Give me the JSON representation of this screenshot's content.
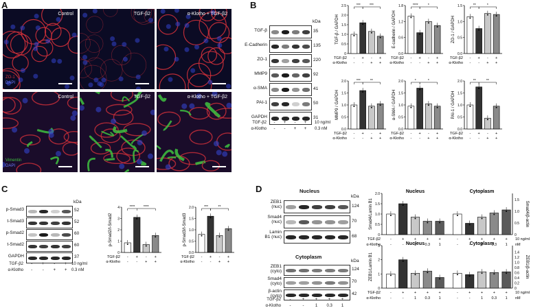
{
  "panels": {
    "A": {
      "label": "A",
      "images": [
        {
          "title": "Control",
          "channels": [
            "ZO-1",
            "DAPI"
          ]
        },
        {
          "title": "TGF-β2",
          "channels": []
        },
        {
          "title": "α-Klotho + TGF-β2",
          "channels": []
        },
        {
          "title": "Control",
          "channels": [
            "Vimentin",
            "DAPI"
          ]
        },
        {
          "title": "TGF-β2",
          "channels": []
        },
        {
          "title": "α-Klotho + TGF-β2",
          "channels": []
        }
      ],
      "colors": {
        "zo1": "#d0303a",
        "vimentin": "#3fc23f",
        "dapi": "#3344cc"
      }
    },
    "B": {
      "label": "B",
      "blot_rows": [
        {
          "name": "TGF-β",
          "kda": "35"
        },
        {
          "name": "E-Cadherin",
          "kda": "135"
        },
        {
          "name": "ZO-1",
          "kda": "220"
        },
        {
          "name": "MMP9",
          "kda": "92"
        },
        {
          "name": "α-SMA",
          "kda": "41"
        },
        {
          "name": "PAI-1",
          "kda": "50"
        },
        {
          "name": "GAPDH",
          "kda": "31"
        }
      ],
      "kda_header": "kDa",
      "conditions": {
        "tgf_label": "TGF-β2",
        "tgf_signs": [
          "-",
          "+",
          "-",
          "+"
        ],
        "tgf_unit": "10 ng/ml",
        "klotho_label": "α-Klotho",
        "klotho_signs": [
          "-",
          "-",
          "+",
          "+"
        ],
        "klotho_unit": "0.3 nM"
      }
    },
    "C": {
      "label": "C",
      "blot_rows": [
        {
          "name": "p-Smad3",
          "kda": "52"
        },
        {
          "name": "t-Smad3",
          "kda": "52"
        },
        {
          "name": "p-Smad2",
          "kda": "60"
        },
        {
          "name": "t-Smad2",
          "kda": "60"
        },
        {
          "name": "GAPDH",
          "kda": "37"
        }
      ],
      "kda_header": "kDa",
      "conditions": {
        "tgf_label": "TGF-β2",
        "tgf_signs": [
          "-",
          "+",
          "-",
          "+"
        ],
        "tgf_unit": "10 ng/ml",
        "klotho_label": "α-Klotho",
        "klotho_signs": [
          "-",
          "-",
          "+",
          "+"
        ],
        "klotho_unit": "0.3 nM"
      }
    },
    "D": {
      "label": "D",
      "nucleus_title": "Nucleus",
      "cytoplasm_title": "Cytoplasm",
      "nuc_rows": [
        {
          "name": "ZEB1",
          "sub": "(nuc)",
          "kda": "124"
        },
        {
          "name": "Smad4",
          "sub": "(nuc)",
          "kda": "70"
        },
        {
          "name": "Lamin",
          "sub": "B1 (nuc)",
          "kda": "68"
        }
      ],
      "cyto_rows": [
        {
          "name": "ZEB1",
          "sub": "(cyto)",
          "kda": "124"
        },
        {
          "name": "Smad4",
          "sub": "(cyto)",
          "kda": "70"
        },
        {
          "name": "β-actin",
          "sub": "(cyto)",
          "kda": "42"
        }
      ],
      "kda_header": "kDa",
      "conditions": {
        "tgf_label": "TGF-β2",
        "tgf_signs": [
          "-",
          "+",
          "+",
          "+",
          "+"
        ],
        "klotho_label": "α-Klotho",
        "klotho_signs": [
          "-",
          "-",
          "1",
          "0.3",
          "1"
        ]
      }
    }
  },
  "chart_data": [
    {
      "id": "B1",
      "type": "bar",
      "ylabel": "TGF-β / GAPDH",
      "ylim": [
        0,
        2.5
      ],
      "yticks": [
        "0",
        "0.5",
        "1.0",
        "1.5",
        "2.0",
        "2.5"
      ],
      "values": [
        1.0,
        1.6,
        1.15,
        0.9
      ],
      "sig": [
        "***",
        "***"
      ]
    },
    {
      "id": "B2",
      "type": "bar",
      "ylabel": "E-cadherin / GAPDH",
      "ylim": [
        0,
        1.8
      ],
      "yticks": [
        "0.0",
        "0.6",
        "1.2",
        "1.8"
      ],
      "values": [
        1.4,
        0.78,
        1.2,
        1.05
      ],
      "sig": [
        "****",
        "*"
      ]
    },
    {
      "id": "B3",
      "type": "bar",
      "ylabel": "ZO-1 / GAPDH",
      "ylim": [
        0,
        1.5
      ],
      "yticks": [
        "0.0",
        "0.5",
        "1.0",
        "1.5"
      ],
      "values": [
        1.15,
        0.78,
        1.25,
        1.22
      ],
      "sig": [
        "**",
        "*"
      ]
    },
    {
      "id": "B4",
      "type": "bar",
      "ylabel": "MMP9 / GAPDH",
      "ylim": [
        0,
        2.0
      ],
      "yticks": [
        "0.0",
        "0.5",
        "1.0",
        "1.5",
        "2.0"
      ],
      "values": [
        1.0,
        1.6,
        0.95,
        1.05
      ],
      "sig": [
        "***",
        "**"
      ]
    },
    {
      "id": "B5",
      "type": "bar",
      "ylabel": "α-SMA / GAPDH",
      "ylim": [
        0,
        2.0
      ],
      "yticks": [
        "0.0",
        "0.5",
        "1.0",
        "1.5",
        "2.0"
      ],
      "values": [
        0.95,
        1.7,
        1.05,
        0.95
      ],
      "sig": [
        "*",
        "*"
      ]
    },
    {
      "id": "B6",
      "type": "bar",
      "ylabel": "PAI-1 / GAPDH",
      "ylim": [
        0,
        2.0
      ],
      "yticks": [
        "0.0",
        "0.5",
        "1.0",
        "1.5",
        "2.0"
      ],
      "values": [
        1.0,
        1.75,
        0.45,
        0.95
      ],
      "sig": [
        "**",
        "**"
      ]
    },
    {
      "id": "C1",
      "type": "bar",
      "ylabel": "p-Smad2/t-Smad2",
      "ylim": [
        0,
        4
      ],
      "yticks": [
        "0",
        "1",
        "2",
        "3",
        "4"
      ],
      "values": [
        0.85,
        3.1,
        0.7,
        1.5
      ],
      "sig": [
        "****",
        "****"
      ]
    },
    {
      "id": "C2",
      "type": "bar",
      "ylabel": "p-Smad3/t-Smad3",
      "ylim": [
        0,
        2.0
      ],
      "yticks": [
        "0.0",
        "0.5",
        "1.0",
        "1.5",
        "2.0"
      ],
      "values": [
        0.8,
        1.6,
        0.75,
        1.05
      ],
      "sig": [
        "***",
        "**"
      ]
    },
    {
      "id": "D1",
      "type": "bar",
      "ylabel": "Smad4/Lamin B1",
      "y2label": "Smad4/β-actin",
      "ylim": [
        0,
        2.0
      ],
      "yticks": [
        "0",
        "0.5",
        "1.0",
        "1.5",
        "2.0"
      ],
      "y2ticks": [
        "0",
        "0.5",
        "1.0",
        "1.5"
      ],
      "groups": [
        {
          "title": "Nucleus",
          "values": [
            1.0,
            1.5,
            0.85,
            0.65,
            0.65
          ]
        },
        {
          "title": "Cytoplasm",
          "values": [
            1.0,
            0.55,
            0.85,
            1.05,
            1.2
          ]
        }
      ]
    },
    {
      "id": "D2",
      "type": "bar",
      "ylabel": "ZEB1/Lamin B1",
      "y2label": "ZEB1/β-actin",
      "ylim": [
        0,
        3
      ],
      "yticks": [
        "0",
        "1",
        "2",
        "3"
      ],
      "y2ticks": [
        "0",
        "0.2",
        "0.4",
        "0.6",
        "0.8",
        "1.0",
        "1.2",
        "1.4"
      ],
      "groups": [
        {
          "title": "Nucleus",
          "values": [
            1.0,
            2.0,
            1.05,
            1.2,
            0.75
          ]
        },
        {
          "title": "Cytoplasm",
          "values": [
            1.05,
            0.95,
            1.15,
            1.1,
            1.15
          ]
        }
      ]
    }
  ],
  "chart_conditions": {
    "four": {
      "tgf_label": "TGF-β2",
      "tgf_signs": [
        "-",
        "+",
        "-",
        "+"
      ],
      "klotho_label": "α-Klotho",
      "klotho_signs": [
        "-",
        "-",
        "+",
        "+"
      ]
    },
    "five": {
      "tgf_label": "TGF-β2",
      "tgf_signs": [
        "-",
        "+",
        "+",
        "+",
        "+"
      ],
      "tgf_unit": "10 ng/ml",
      "klotho_label": "α-Klotho",
      "klotho_signs": [
        "-",
        "-",
        "1",
        "0.3",
        "1"
      ],
      "klotho_unit": "nM"
    }
  },
  "bar_colors": [
    "#ffffff",
    "#333333",
    "#c8c8c8",
    "#8a8a8a",
    "#5a5a5a"
  ]
}
